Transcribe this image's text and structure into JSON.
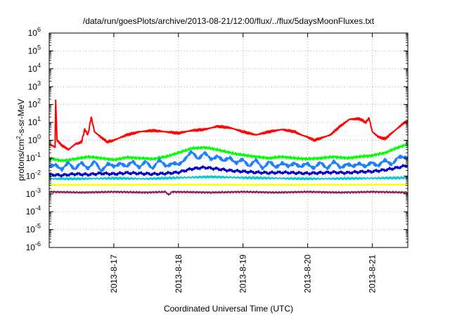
{
  "chart_data": {
    "type": "line",
    "title": "/data/run/goesPlots/archive/2013-08-21/12:00/flux/../flux/5daysMoonFluxes.txt",
    "xlabel": "Coordinated Universal Time (UTC)",
    "ylabel": {
      "pre": "protons/cm",
      "sup": "2",
      "post": "-s-sr-MeV"
    },
    "yscale": "log",
    "ylim_exp": [
      -6,
      6
    ],
    "ytick_exps": [
      "-6",
      "-5",
      "-4",
      "-3",
      "-2",
      "-1",
      "0",
      "1",
      "2",
      "3",
      "4",
      "5",
      "6"
    ],
    "ytick_base": "10",
    "xlim_days": [
      0,
      5.55
    ],
    "x_origin_date": "2013-8-16",
    "xticks": [
      {
        "day": 1,
        "label": "2013-8-17"
      },
      {
        "day": 2,
        "label": "2013-8-18"
      },
      {
        "day": 3,
        "label": "2013-8-19"
      },
      {
        "day": 4,
        "label": "2013-8-20"
      },
      {
        "day": 5,
        "label": "2013-8-21"
      }
    ],
    "grid": true,
    "series": [
      {
        "color": "#ff0000",
        "points": [
          [
            0,
            0.6
          ],
          [
            0.05,
            0.5
          ],
          [
            0.09,
            0.4
          ],
          [
            0.1,
            200
          ],
          [
            0.12,
            1.0
          ],
          [
            0.2,
            0.5
          ],
          [
            0.3,
            0.3
          ],
          [
            0.4,
            0.6
          ],
          [
            0.5,
            0.8
          ],
          [
            0.55,
            4
          ],
          [
            0.6,
            2
          ],
          [
            0.65,
            20
          ],
          [
            0.7,
            3
          ],
          [
            0.8,
            1.5
          ],
          [
            0.9,
            0.8
          ],
          [
            1.0,
            1.0
          ],
          [
            1.2,
            2.0
          ],
          [
            1.4,
            3.0
          ],
          [
            1.6,
            3.5
          ],
          [
            1.8,
            3.0
          ],
          [
            2.0,
            2.5
          ],
          [
            2.2,
            3.5
          ],
          [
            2.4,
            4.0
          ],
          [
            2.6,
            6.0
          ],
          [
            2.8,
            5.0
          ],
          [
            3.0,
            3.0
          ],
          [
            3.2,
            2.0
          ],
          [
            3.4,
            3.0
          ],
          [
            3.6,
            4.0
          ],
          [
            3.8,
            3.0
          ],
          [
            3.9,
            2.0
          ],
          [
            4.0,
            1.5
          ],
          [
            4.1,
            1.0
          ],
          [
            4.2,
            1.3
          ],
          [
            4.35,
            2.0
          ],
          [
            4.5,
            6.0
          ],
          [
            4.65,
            15
          ],
          [
            4.8,
            16
          ],
          [
            4.9,
            10
          ],
          [
            4.95,
            18
          ],
          [
            5.0,
            3.0
          ],
          [
            5.1,
            1.5
          ],
          [
            5.2,
            1.2
          ],
          [
            5.3,
            2.5
          ],
          [
            5.4,
            5.0
          ],
          [
            5.5,
            10
          ],
          [
            5.55,
            12
          ]
        ]
      },
      {
        "color": "#00ff00",
        "points": [
          [
            0,
            0.1
          ],
          [
            0.2,
            0.07
          ],
          [
            0.4,
            0.09
          ],
          [
            0.6,
            0.12
          ],
          [
            0.8,
            0.1
          ],
          [
            1.0,
            0.08
          ],
          [
            1.2,
            0.11
          ],
          [
            1.4,
            0.1
          ],
          [
            1.6,
            0.09
          ],
          [
            1.8,
            0.12
          ],
          [
            2.0,
            0.2
          ],
          [
            2.2,
            0.35
          ],
          [
            2.4,
            0.4
          ],
          [
            2.6,
            0.3
          ],
          [
            2.8,
            0.2
          ],
          [
            3.0,
            0.15
          ],
          [
            3.2,
            0.12
          ],
          [
            3.4,
            0.1
          ],
          [
            3.6,
            0.12
          ],
          [
            3.8,
            0.1
          ],
          [
            4.0,
            0.09
          ],
          [
            4.2,
            0.1
          ],
          [
            4.4,
            0.12
          ],
          [
            4.6,
            0.1
          ],
          [
            4.8,
            0.12
          ],
          [
            5.0,
            0.14
          ],
          [
            5.2,
            0.2
          ],
          [
            5.4,
            0.4
          ],
          [
            5.55,
            0.6
          ]
        ]
      },
      {
        "color": "#1e7fff",
        "points": [
          [
            0,
            0.03
          ],
          [
            0.1,
            0.05
          ],
          [
            0.2,
            0.02
          ],
          [
            0.3,
            0.06
          ],
          [
            0.4,
            0.025
          ],
          [
            0.5,
            0.05
          ],
          [
            0.6,
            0.03
          ],
          [
            0.7,
            0.06
          ],
          [
            0.8,
            0.02
          ],
          [
            0.9,
            0.05
          ],
          [
            1.0,
            0.03
          ],
          [
            1.1,
            0.06
          ],
          [
            1.2,
            0.03
          ],
          [
            1.3,
            0.07
          ],
          [
            1.4,
            0.03
          ],
          [
            1.5,
            0.06
          ],
          [
            1.6,
            0.03
          ],
          [
            1.7,
            0.07
          ],
          [
            1.8,
            0.04
          ],
          [
            1.9,
            0.05
          ],
          [
            2.0,
            0.04
          ],
          [
            2.1,
            0.1
          ],
          [
            2.2,
            0.2
          ],
          [
            2.3,
            0.1
          ],
          [
            2.4,
            0.2
          ],
          [
            2.5,
            0.08
          ],
          [
            2.6,
            0.15
          ],
          [
            2.7,
            0.06
          ],
          [
            2.8,
            0.12
          ],
          [
            2.9,
            0.05
          ],
          [
            3.0,
            0.08
          ],
          [
            3.1,
            0.04
          ],
          [
            3.2,
            0.07
          ],
          [
            3.3,
            0.03
          ],
          [
            3.4,
            0.06
          ],
          [
            3.5,
            0.03
          ],
          [
            3.6,
            0.06
          ],
          [
            3.7,
            0.03
          ],
          [
            3.8,
            0.06
          ],
          [
            3.9,
            0.03
          ],
          [
            4.0,
            0.05
          ],
          [
            4.1,
            0.03
          ],
          [
            4.2,
            0.05
          ],
          [
            4.3,
            0.03
          ],
          [
            4.4,
            0.06
          ],
          [
            4.5,
            0.03
          ],
          [
            4.6,
            0.05
          ],
          [
            4.7,
            0.03
          ],
          [
            4.8,
            0.06
          ],
          [
            4.9,
            0.03
          ],
          [
            5.0,
            0.06
          ],
          [
            5.1,
            0.04
          ],
          [
            5.2,
            0.07
          ],
          [
            5.3,
            0.05
          ],
          [
            5.4,
            0.1
          ],
          [
            5.55,
            0.12
          ]
        ]
      },
      {
        "color": "#0000cd",
        "points": [
          [
            0,
            0.012
          ],
          [
            0.2,
            0.011
          ],
          [
            0.4,
            0.013
          ],
          [
            0.6,
            0.012
          ],
          [
            0.8,
            0.014
          ],
          [
            1.0,
            0.013
          ],
          [
            1.2,
            0.015
          ],
          [
            1.4,
            0.014
          ],
          [
            1.6,
            0.013
          ],
          [
            1.8,
            0.014
          ],
          [
            2.0,
            0.016
          ],
          [
            2.2,
            0.025
          ],
          [
            2.4,
            0.03
          ],
          [
            2.6,
            0.025
          ],
          [
            2.8,
            0.02
          ],
          [
            3.0,
            0.018
          ],
          [
            3.2,
            0.016
          ],
          [
            3.4,
            0.015
          ],
          [
            3.6,
            0.016
          ],
          [
            3.8,
            0.015
          ],
          [
            4.0,
            0.014
          ],
          [
            4.2,
            0.015
          ],
          [
            4.4,
            0.016
          ],
          [
            4.6,
            0.015
          ],
          [
            4.8,
            0.017
          ],
          [
            5.0,
            0.018
          ],
          [
            5.2,
            0.022
          ],
          [
            5.4,
            0.03
          ],
          [
            5.55,
            0.04
          ]
        ]
      },
      {
        "color": "#00cdcd",
        "points": [
          [
            0,
            0.007
          ],
          [
            0.5,
            0.007
          ],
          [
            1.0,
            0.0075
          ],
          [
            1.5,
            0.007
          ],
          [
            2.0,
            0.008
          ],
          [
            2.5,
            0.009
          ],
          [
            3.0,
            0.008
          ],
          [
            3.5,
            0.0075
          ],
          [
            4.0,
            0.007
          ],
          [
            4.5,
            0.0072
          ],
          [
            5.0,
            0.0075
          ],
          [
            5.55,
            0.008
          ]
        ]
      },
      {
        "color": "#ffff00",
        "points": [
          [
            0,
            0.0032
          ],
          [
            1.0,
            0.0032
          ],
          [
            2.0,
            0.0033
          ],
          [
            3.0,
            0.0032
          ],
          [
            4.0,
            0.0032
          ],
          [
            5.0,
            0.0033
          ],
          [
            5.55,
            0.0033
          ]
        ]
      },
      {
        "color": "#8b2252",
        "points": [
          [
            0,
            0.0013
          ],
          [
            0.5,
            0.0012
          ],
          [
            1.0,
            0.0013
          ],
          [
            1.5,
            0.0012
          ],
          [
            1.8,
            0.0013
          ],
          [
            1.85,
            0.0009
          ],
          [
            1.9,
            0.0013
          ],
          [
            2.5,
            0.0012
          ],
          [
            3.0,
            0.0013
          ],
          [
            3.5,
            0.0012
          ],
          [
            4.0,
            0.0013
          ],
          [
            4.5,
            0.0012
          ],
          [
            5.0,
            0.0013
          ],
          [
            5.55,
            0.0012
          ]
        ]
      }
    ]
  }
}
